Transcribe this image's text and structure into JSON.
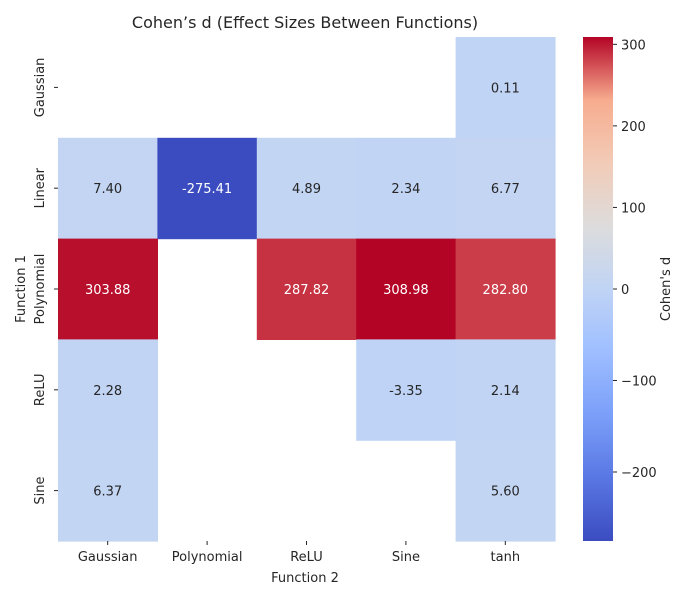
{
  "chart_data": {
    "type": "heatmap",
    "title": "Cohen’s d (Effect Sizes Between Functions)",
    "xlabel": "Function 2",
    "ylabel": "Function 1",
    "x_categories": [
      "Gaussian",
      "Polynomial",
      "ReLU",
      "Sine",
      "tanh"
    ],
    "y_categories": [
      "Gaussian",
      "Linear",
      "Polynomial",
      "ReLU",
      "Sine"
    ],
    "values": [
      [
        null,
        null,
        null,
        null,
        0.11
      ],
      [
        7.4,
        -275.41,
        4.89,
        2.34,
        6.77
      ],
      [
        303.88,
        null,
        287.82,
        308.98,
        282.8
      ],
      [
        2.28,
        null,
        null,
        -3.35,
        2.14
      ],
      [
        6.37,
        null,
        null,
        null,
        5.6
      ]
    ],
    "value_labels": [
      [
        null,
        null,
        null,
        null,
        "0.11"
      ],
      [
        "7.40",
        "-275.41",
        "4.89",
        "2.34",
        "6.77"
      ],
      [
        "303.88",
        null,
        "287.82",
        "308.98",
        "282.80"
      ],
      [
        "2.28",
        null,
        null,
        "-3.35",
        "2.14"
      ],
      [
        "6.37",
        null,
        null,
        null,
        "5.60"
      ]
    ],
    "colormap": "coolwarm",
    "vmin": -275.41,
    "vmax": 308.98,
    "colorbar": {
      "label": "Cohen's d",
      "ticks": [
        -200,
        -100,
        0,
        100,
        200,
        300
      ],
      "tick_labels": [
        "−200",
        "−100",
        "0",
        "100",
        "200",
        "300"
      ]
    }
  }
}
